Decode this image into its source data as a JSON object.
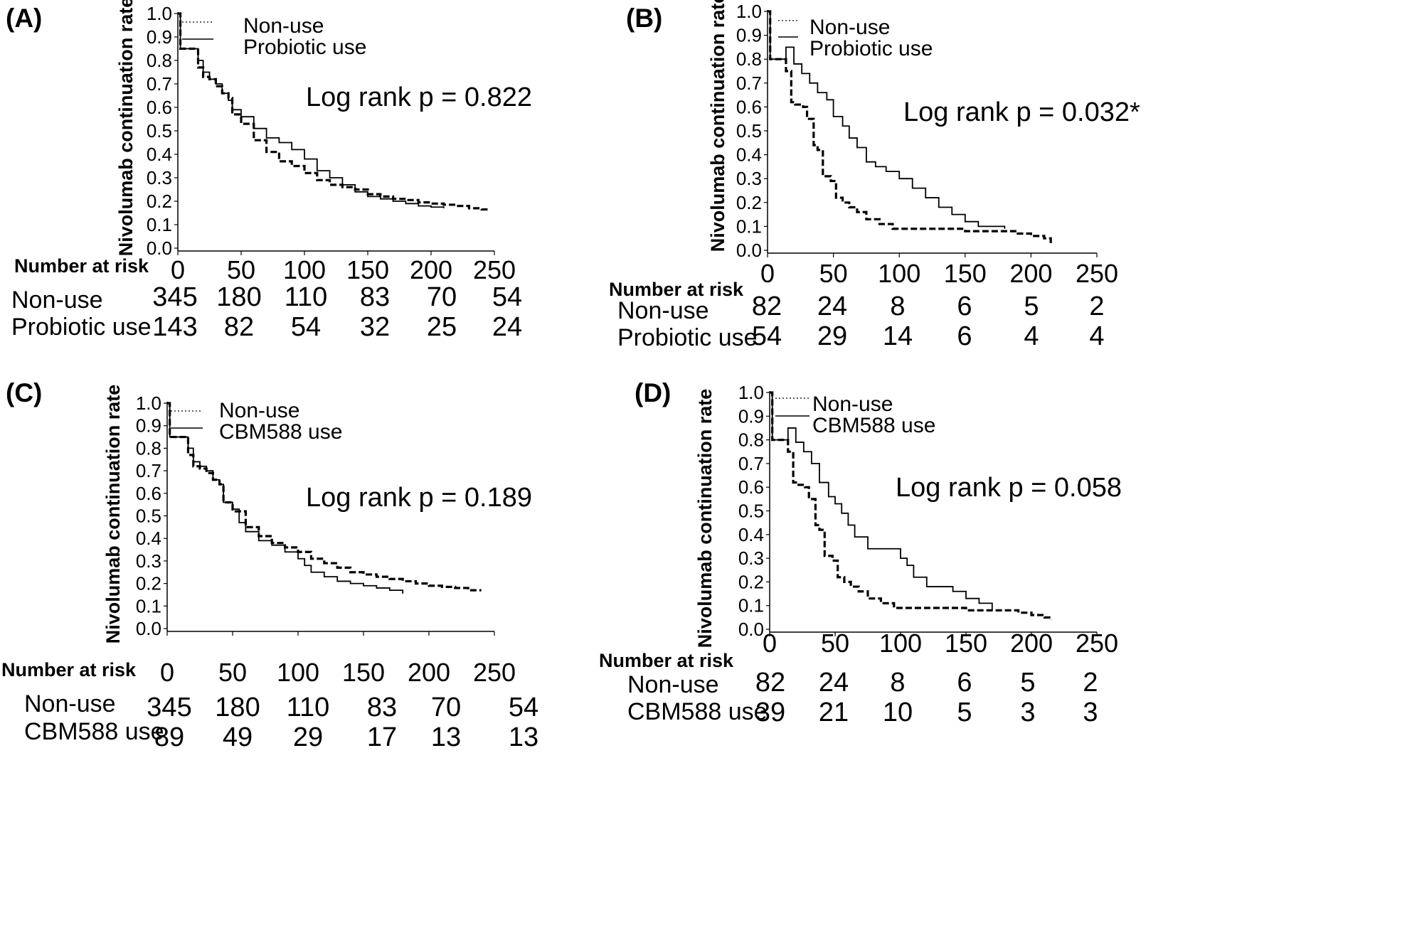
{
  "chart_data": [
    {
      "type": "line",
      "panel": "(A)",
      "ylabel": "Nivolumab continuation rate",
      "ylim": [
        0,
        1
      ],
      "yticks": [
        "0.0",
        "0.1",
        "0.2",
        "0.3",
        "0.4",
        "0.5",
        "0.6",
        "0.7",
        "0.8",
        "0.9",
        "1.0"
      ],
      "xlim": [
        0,
        250
      ],
      "xticks": [
        "0",
        "50",
        "100",
        "150",
        "200",
        "250"
      ],
      "annotation": "Log rank p = 0.822",
      "risk_title": "Number at risk",
      "series": [
        {
          "name": "Non-use",
          "style": "dotted",
          "x": [
            0,
            2,
            2,
            14,
            16,
            20,
            25,
            30,
            35,
            40,
            43,
            50,
            60,
            70,
            80,
            90,
            100,
            110,
            120,
            130,
            140,
            150,
            160,
            170,
            180,
            190,
            200,
            210,
            220,
            230,
            240,
            245
          ],
          "y": [
            1.0,
            1.0,
            0.85,
            0.85,
            0.77,
            0.73,
            0.72,
            0.69,
            0.66,
            0.64,
            0.57,
            0.53,
            0.46,
            0.41,
            0.37,
            0.35,
            0.32,
            0.29,
            0.27,
            0.26,
            0.25,
            0.23,
            0.22,
            0.21,
            0.205,
            0.195,
            0.19,
            0.185,
            0.18,
            0.17,
            0.165,
            0.16
          ]
        },
        {
          "name": "Probiotic use",
          "style": "solid",
          "x": [
            0,
            2,
            2,
            14,
            16,
            20,
            25,
            30,
            35,
            40,
            43,
            50,
            60,
            70,
            80,
            90,
            100,
            110,
            120,
            130,
            140,
            150,
            160,
            170,
            180,
            190,
            200,
            210
          ],
          "y": [
            1.0,
            1.0,
            0.85,
            0.85,
            0.8,
            0.75,
            0.72,
            0.7,
            0.66,
            0.63,
            0.59,
            0.56,
            0.51,
            0.47,
            0.45,
            0.42,
            0.38,
            0.33,
            0.3,
            0.27,
            0.24,
            0.22,
            0.21,
            0.2,
            0.19,
            0.18,
            0.175,
            0.17
          ]
        }
      ],
      "risk_table": [
        {
          "label": "Non-use",
          "values": [
            "345",
            "180",
            "110",
            "83",
            "70",
            "54"
          ]
        },
        {
          "label": "Probiotic use",
          "values": [
            "143",
            "82",
            "54",
            "32",
            "25",
            "24"
          ]
        }
      ]
    },
    {
      "type": "line",
      "panel": "(B)",
      "ylabel": "Nivolumab continuation rate",
      "ylim": [
        0,
        1
      ],
      "yticks": [
        "0.0",
        "0.1",
        "0.2",
        "0.3",
        "0.4",
        "0.5",
        "0.6",
        "0.7",
        "0.8",
        "0.9",
        "1.0"
      ],
      "xlim": [
        0,
        250
      ],
      "xticks": [
        "0",
        "50",
        "100",
        "150",
        "200",
        "250"
      ],
      "annotation": "Log rank p = 0.032*",
      "risk_title": "Number at risk",
      "series": [
        {
          "name": "Non-use",
          "style": "dotted",
          "x": [
            0,
            2,
            2,
            14,
            14,
            18,
            21,
            27,
            30,
            35,
            38,
            42,
            48,
            52,
            57,
            62,
            68,
            75,
            85,
            95,
            110,
            130,
            150,
            170,
            190,
            200,
            210,
            215
          ],
          "y": [
            1.0,
            1.0,
            0.8,
            0.8,
            0.75,
            0.62,
            0.61,
            0.6,
            0.55,
            0.44,
            0.42,
            0.31,
            0.29,
            0.22,
            0.2,
            0.18,
            0.16,
            0.13,
            0.11,
            0.09,
            0.09,
            0.09,
            0.08,
            0.08,
            0.07,
            0.06,
            0.05,
            0.02
          ]
        },
        {
          "name": "Probiotic use",
          "style": "solid",
          "x": [
            0,
            2,
            2,
            14,
            14,
            20,
            26,
            32,
            38,
            45,
            50,
            57,
            62,
            68,
            75,
            82,
            90,
            100,
            110,
            120,
            130,
            140,
            150,
            160,
            170,
            180
          ],
          "y": [
            1.0,
            1.0,
            0.8,
            0.8,
            0.85,
            0.78,
            0.74,
            0.7,
            0.66,
            0.63,
            0.56,
            0.52,
            0.47,
            0.43,
            0.37,
            0.35,
            0.33,
            0.3,
            0.26,
            0.22,
            0.18,
            0.15,
            0.12,
            0.1,
            0.1,
            0.09
          ]
        }
      ],
      "risk_table": [
        {
          "label": "Non-use",
          "values": [
            "82",
            "24",
            "8",
            "6",
            "5",
            "2"
          ]
        },
        {
          "label": "Probiotic use",
          "values": [
            "54",
            "29",
            "14",
            "6",
            "4",
            "4"
          ]
        }
      ]
    },
    {
      "type": "line",
      "panel": "(C)",
      "ylabel": "Nivolumab continuation rate",
      "ylim": [
        0,
        1
      ],
      "yticks": [
        "0.0",
        "0.1",
        "0.2",
        "0.3",
        "0.4",
        "0.5",
        "0.6",
        "0.7",
        "0.8",
        "0.9",
        "1.0"
      ],
      "xlim": [
        0,
        250
      ],
      "xticks": [
        "0",
        "50",
        "100",
        "150",
        "200",
        "250"
      ],
      "annotation": "Log rank p = 0.189",
      "risk_title": "Number at risk",
      "series": [
        {
          "name": "Non-use",
          "style": "dotted",
          "x": [
            0,
            2,
            2,
            14,
            16,
            20,
            25,
            30,
            35,
            40,
            43,
            50,
            60,
            70,
            80,
            90,
            100,
            110,
            120,
            130,
            140,
            150,
            160,
            170,
            180,
            190,
            200,
            210,
            220,
            230,
            240
          ],
          "y": [
            1.0,
            1.0,
            0.85,
            0.85,
            0.77,
            0.72,
            0.71,
            0.69,
            0.66,
            0.64,
            0.56,
            0.52,
            0.45,
            0.41,
            0.38,
            0.36,
            0.34,
            0.31,
            0.29,
            0.27,
            0.25,
            0.24,
            0.23,
            0.22,
            0.21,
            0.2,
            0.19,
            0.185,
            0.18,
            0.17,
            0.17
          ]
        },
        {
          "name": "CBM588 use",
          "style": "solid",
          "x": [
            0,
            2,
            2,
            14,
            16,
            20,
            25,
            30,
            35,
            40,
            43,
            50,
            55,
            60,
            70,
            80,
            90,
            100,
            105,
            110,
            120,
            130,
            140,
            150,
            160,
            170,
            180
          ],
          "y": [
            1.0,
            1.0,
            0.85,
            0.85,
            0.8,
            0.74,
            0.72,
            0.7,
            0.66,
            0.64,
            0.56,
            0.53,
            0.47,
            0.43,
            0.39,
            0.37,
            0.34,
            0.31,
            0.28,
            0.25,
            0.23,
            0.21,
            0.2,
            0.19,
            0.18,
            0.17,
            0.155
          ]
        }
      ],
      "risk_table": [
        {
          "label": "Non-use",
          "values": [
            "345",
            "180",
            "110",
            "83",
            "70",
            "54"
          ]
        },
        {
          "label": "CBM588 use",
          "values": [
            "89",
            "49",
            "29",
            "17",
            "13",
            "13"
          ]
        }
      ]
    },
    {
      "type": "line",
      "panel": "(D)",
      "ylabel": "Nivolumab continuation rate",
      "ylim": [
        0,
        1
      ],
      "yticks": [
        "0.0",
        "0.1",
        "0.2",
        "0.3",
        "0.4",
        "0.5",
        "0.6",
        "0.7",
        "0.8",
        "0.9",
        "1.0"
      ],
      "xlim": [
        0,
        250
      ],
      "xticks": [
        "0",
        "50",
        "100",
        "150",
        "200",
        "250"
      ],
      "annotation": "Log rank p = 0.058",
      "risk_title": "Number at risk",
      "series": [
        {
          "name": "Non-use",
          "style": "dotted",
          "x": [
            0,
            2,
            2,
            14,
            14,
            18,
            21,
            27,
            30,
            35,
            38,
            42,
            48,
            52,
            57,
            62,
            68,
            75,
            85,
            95,
            110,
            130,
            150,
            170,
            190,
            200,
            210,
            215
          ],
          "y": [
            1.0,
            1.0,
            0.8,
            0.8,
            0.75,
            0.62,
            0.61,
            0.6,
            0.55,
            0.44,
            0.42,
            0.31,
            0.29,
            0.22,
            0.2,
            0.18,
            0.16,
            0.13,
            0.11,
            0.09,
            0.09,
            0.09,
            0.08,
            0.08,
            0.07,
            0.06,
            0.05,
            0.04
          ]
        },
        {
          "name": "CBM588 use",
          "style": "solid",
          "x": [
            0,
            2,
            2,
            14,
            14,
            20,
            26,
            32,
            38,
            45,
            50,
            55,
            60,
            65,
            75,
            90,
            100,
            105,
            110,
            120,
            130,
            140,
            150,
            160,
            170
          ],
          "y": [
            1.0,
            1.0,
            0.8,
            0.8,
            0.85,
            0.79,
            0.75,
            0.7,
            0.62,
            0.56,
            0.53,
            0.49,
            0.44,
            0.39,
            0.34,
            0.34,
            0.3,
            0.27,
            0.22,
            0.18,
            0.18,
            0.16,
            0.13,
            0.11,
            0.08
          ]
        }
      ],
      "risk_table": [
        {
          "label": "Non-use",
          "values": [
            "82",
            "24",
            "8",
            "6",
            "5",
            "2"
          ]
        },
        {
          "label": "CBM588 use",
          "values": [
            "39",
            "21",
            "10",
            "5",
            "3",
            "3"
          ]
        }
      ]
    }
  ]
}
